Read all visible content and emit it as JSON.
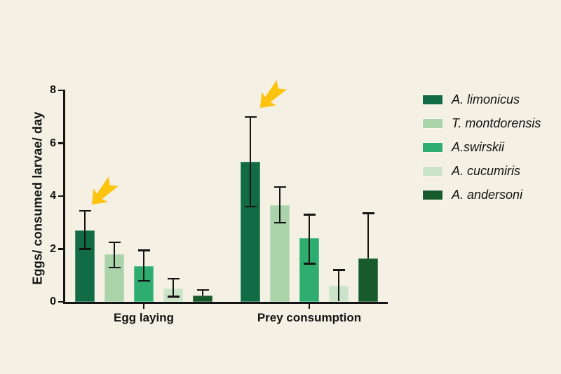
{
  "page": {
    "background_color": "#f4f0e3",
    "text_color": "#141414"
  },
  "chart_data": {
    "type": "bar",
    "title": "",
    "ylabel": "Eggs/ consumed larvae/ day",
    "xlabel": "",
    "ylim": [
      0,
      8
    ],
    "yticks": [
      0,
      2,
      4,
      6,
      8
    ],
    "grid": false,
    "legend_position": "right",
    "categories": [
      "Egg laying",
      "Prey consumption"
    ],
    "series": [
      {
        "name": "A. limonicus",
        "color": "#116b45",
        "values": [
          2.7,
          5.3
        ],
        "err_hi": [
          3.45,
          7.0
        ],
        "err_lo": [
          2.0,
          3.6
        ]
      },
      {
        "name": "T. montdorensis",
        "color": "#abd3aa",
        "values": [
          1.8,
          3.65
        ],
        "err_hi": [
          2.25,
          4.35
        ],
        "err_lo": [
          1.3,
          3.0
        ]
      },
      {
        "name": "A.swirskii",
        "color": "#2fad71",
        "values": [
          1.35,
          2.4
        ],
        "err_hi": [
          1.95,
          3.3
        ],
        "err_lo": [
          0.8,
          1.45
        ]
      },
      {
        "name": "A. cucumiris",
        "color": "#cbe3c8",
        "values": [
          0.5,
          0.6
        ],
        "err_hi": [
          0.87,
          1.2
        ],
        "err_lo": [
          0.2,
          0.02
        ]
      },
      {
        "name": "A. andersoni",
        "color": "#175a2c",
        "values": [
          0.25,
          1.65
        ],
        "err_hi": [
          0.45,
          3.35
        ],
        "err_lo": [
          0.25,
          1.65
        ]
      }
    ],
    "error_bar_color": "#141414",
    "axis_color": "#141414",
    "annotations": [
      {
        "type": "arrow",
        "color": "#fcc30f",
        "points_to": "A. limonicus bar in Egg laying group"
      },
      {
        "type": "arrow",
        "color": "#fcc30f",
        "points_to": "A. limonicus bar in Prey consumption group"
      }
    ]
  }
}
